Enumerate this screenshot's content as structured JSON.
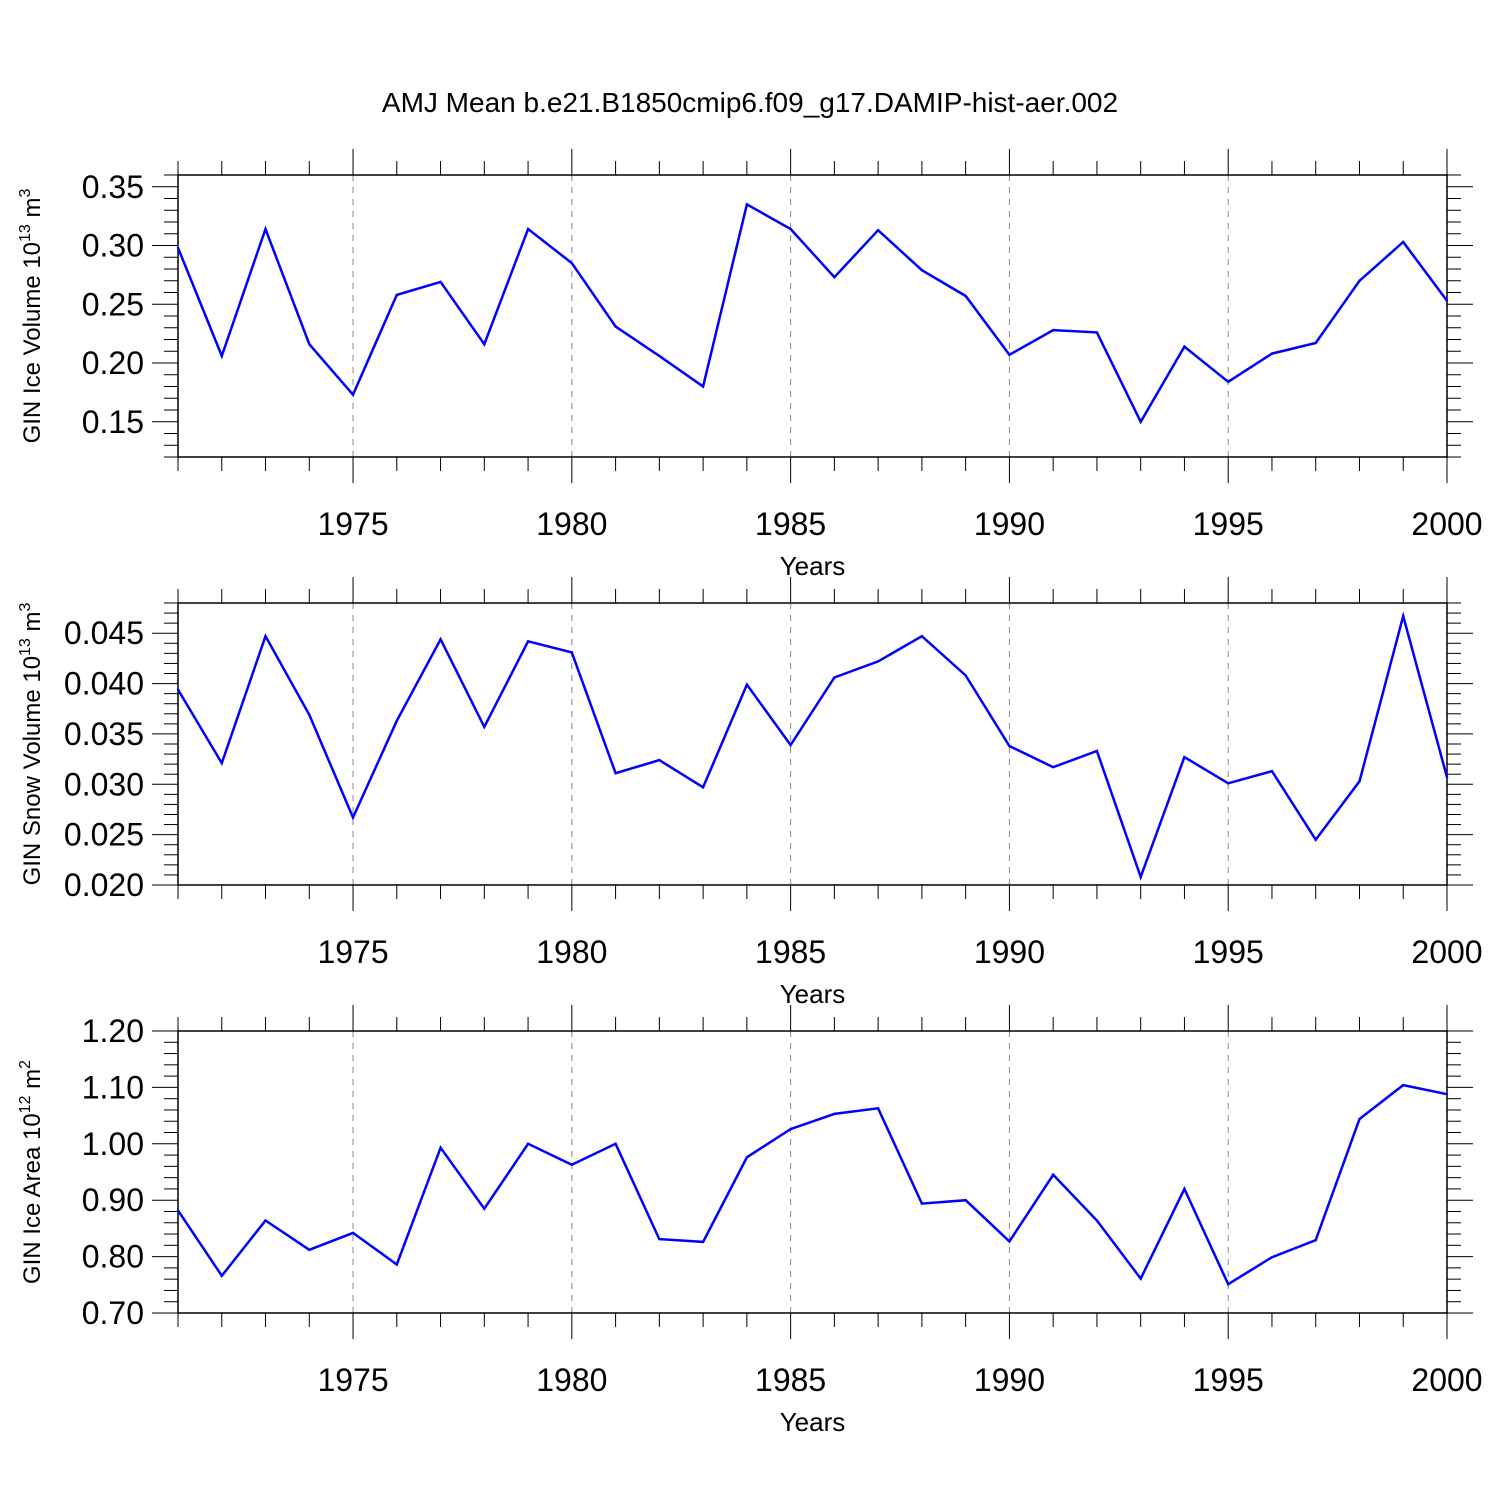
{
  "title": "AMJ Mean b.e21.B1850cmip6.f09_g17.DAMIP-hist-aer.002",
  "line_color": "#0000ff",
  "chart_data": [
    {
      "type": "line",
      "ylabel": {
        "main": "GIN Ice Volume 10",
        "exp": "13",
        "unit": "m",
        "unit_exp": "3"
      },
      "xlabel": "Years",
      "xlim": [
        1971,
        2000
      ],
      "ylim": [
        0.12,
        0.36
      ],
      "xticks": [
        1975,
        1980,
        1985,
        1990,
        1995,
        2000
      ],
      "yticks": [
        0.15,
        0.2,
        0.25,
        0.3,
        0.35
      ],
      "ytick_labels": [
        "0.15",
        "0.20",
        "0.25",
        "0.30",
        "0.35"
      ],
      "x": [
        1971,
        1972,
        1973,
        1974,
        1975,
        1976,
        1977,
        1978,
        1979,
        1980,
        1981,
        1982,
        1983,
        1984,
        1985,
        1986,
        1987,
        1988,
        1989,
        1990,
        1991,
        1992,
        1993,
        1994,
        1995,
        1996,
        1997,
        1998,
        1999,
        2000
      ],
      "values": [
        0.298,
        0.206,
        0.314,
        0.216,
        0.173,
        0.258,
        0.269,
        0.216,
        0.314,
        0.285,
        0.231,
        0.206,
        0.18,
        0.335,
        0.314,
        0.273,
        0.313,
        0.279,
        0.257,
        0.207,
        0.228,
        0.226,
        0.15,
        0.214,
        0.184,
        0.208,
        0.217,
        0.27,
        0.303,
        0.253
      ]
    },
    {
      "type": "line",
      "ylabel": {
        "main": "GIN Snow Volume 10",
        "exp": "13",
        "unit": "m",
        "unit_exp": "3"
      },
      "xlabel": "Years",
      "xlim": [
        1971,
        2000
      ],
      "ylim": [
        0.02,
        0.048
      ],
      "xticks": [
        1975,
        1980,
        1985,
        1990,
        1995,
        2000
      ],
      "yticks": [
        0.02,
        0.025,
        0.03,
        0.035,
        0.04,
        0.045
      ],
      "ytick_labels": [
        "0.020",
        "0.025",
        "0.030",
        "0.035",
        "0.040",
        "0.045"
      ],
      "x": [
        1971,
        1972,
        1973,
        1974,
        1975,
        1976,
        1977,
        1978,
        1979,
        1980,
        1981,
        1982,
        1983,
        1984,
        1985,
        1986,
        1987,
        1988,
        1989,
        1990,
        1991,
        1992,
        1993,
        1994,
        1995,
        1996,
        1997,
        1998,
        1999,
        2000
      ],
      "values": [
        0.0394,
        0.0321,
        0.0447,
        0.0369,
        0.0267,
        0.0363,
        0.0444,
        0.0357,
        0.0442,
        0.0431,
        0.0311,
        0.0324,
        0.0297,
        0.0399,
        0.0339,
        0.0406,
        0.0422,
        0.0447,
        0.0408,
        0.0338,
        0.0317,
        0.0333,
        0.0208,
        0.0327,
        0.0301,
        0.0313,
        0.0245,
        0.0303,
        0.0467,
        0.0307
      ]
    },
    {
      "type": "line",
      "ylabel": {
        "main": "GIN Ice Area 10",
        "exp": "12",
        "unit": "m",
        "unit_exp": "2"
      },
      "xlabel": "Years",
      "xlim": [
        1971,
        2000
      ],
      "ylim": [
        0.7,
        1.2
      ],
      "xticks": [
        1975,
        1980,
        1985,
        1990,
        1995,
        2000
      ],
      "yticks": [
        0.7,
        0.8,
        0.9,
        1.0,
        1.1,
        1.2
      ],
      "ytick_labels": [
        "0.70",
        "0.80",
        "0.90",
        "1.00",
        "1.10",
        "1.20"
      ],
      "x": [
        1971,
        1972,
        1973,
        1974,
        1975,
        1976,
        1977,
        1978,
        1979,
        1980,
        1981,
        1982,
        1983,
        1984,
        1985,
        1986,
        1987,
        1988,
        1989,
        1990,
        1991,
        1992,
        1993,
        1994,
        1995,
        1996,
        1997,
        1998,
        1999,
        2000
      ],
      "values": [
        0.882,
        0.766,
        0.864,
        0.812,
        0.842,
        0.786,
        0.993,
        0.885,
        1.0,
        0.963,
        1.0,
        0.831,
        0.826,
        0.976,
        1.026,
        1.053,
        1.063,
        0.894,
        0.9,
        0.827,
        0.945,
        0.864,
        0.761,
        0.92,
        0.751,
        0.799,
        0.829,
        1.044,
        1.104,
        1.088
      ]
    }
  ]
}
